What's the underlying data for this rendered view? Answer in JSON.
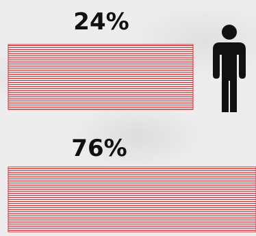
{
  "chart_data": {
    "type": "bar",
    "orientation": "horizontal",
    "categories": [
      "",
      ""
    ],
    "values": [
      24,
      76
    ],
    "value_labels": [
      "24%",
      "76%"
    ],
    "unit": "%",
    "xlim": [
      0,
      100
    ],
    "bar_color": "#d32f2f",
    "bar_fill": "#ffffff",
    "icon": "male-person-icon",
    "icon_color": "#111111"
  }
}
